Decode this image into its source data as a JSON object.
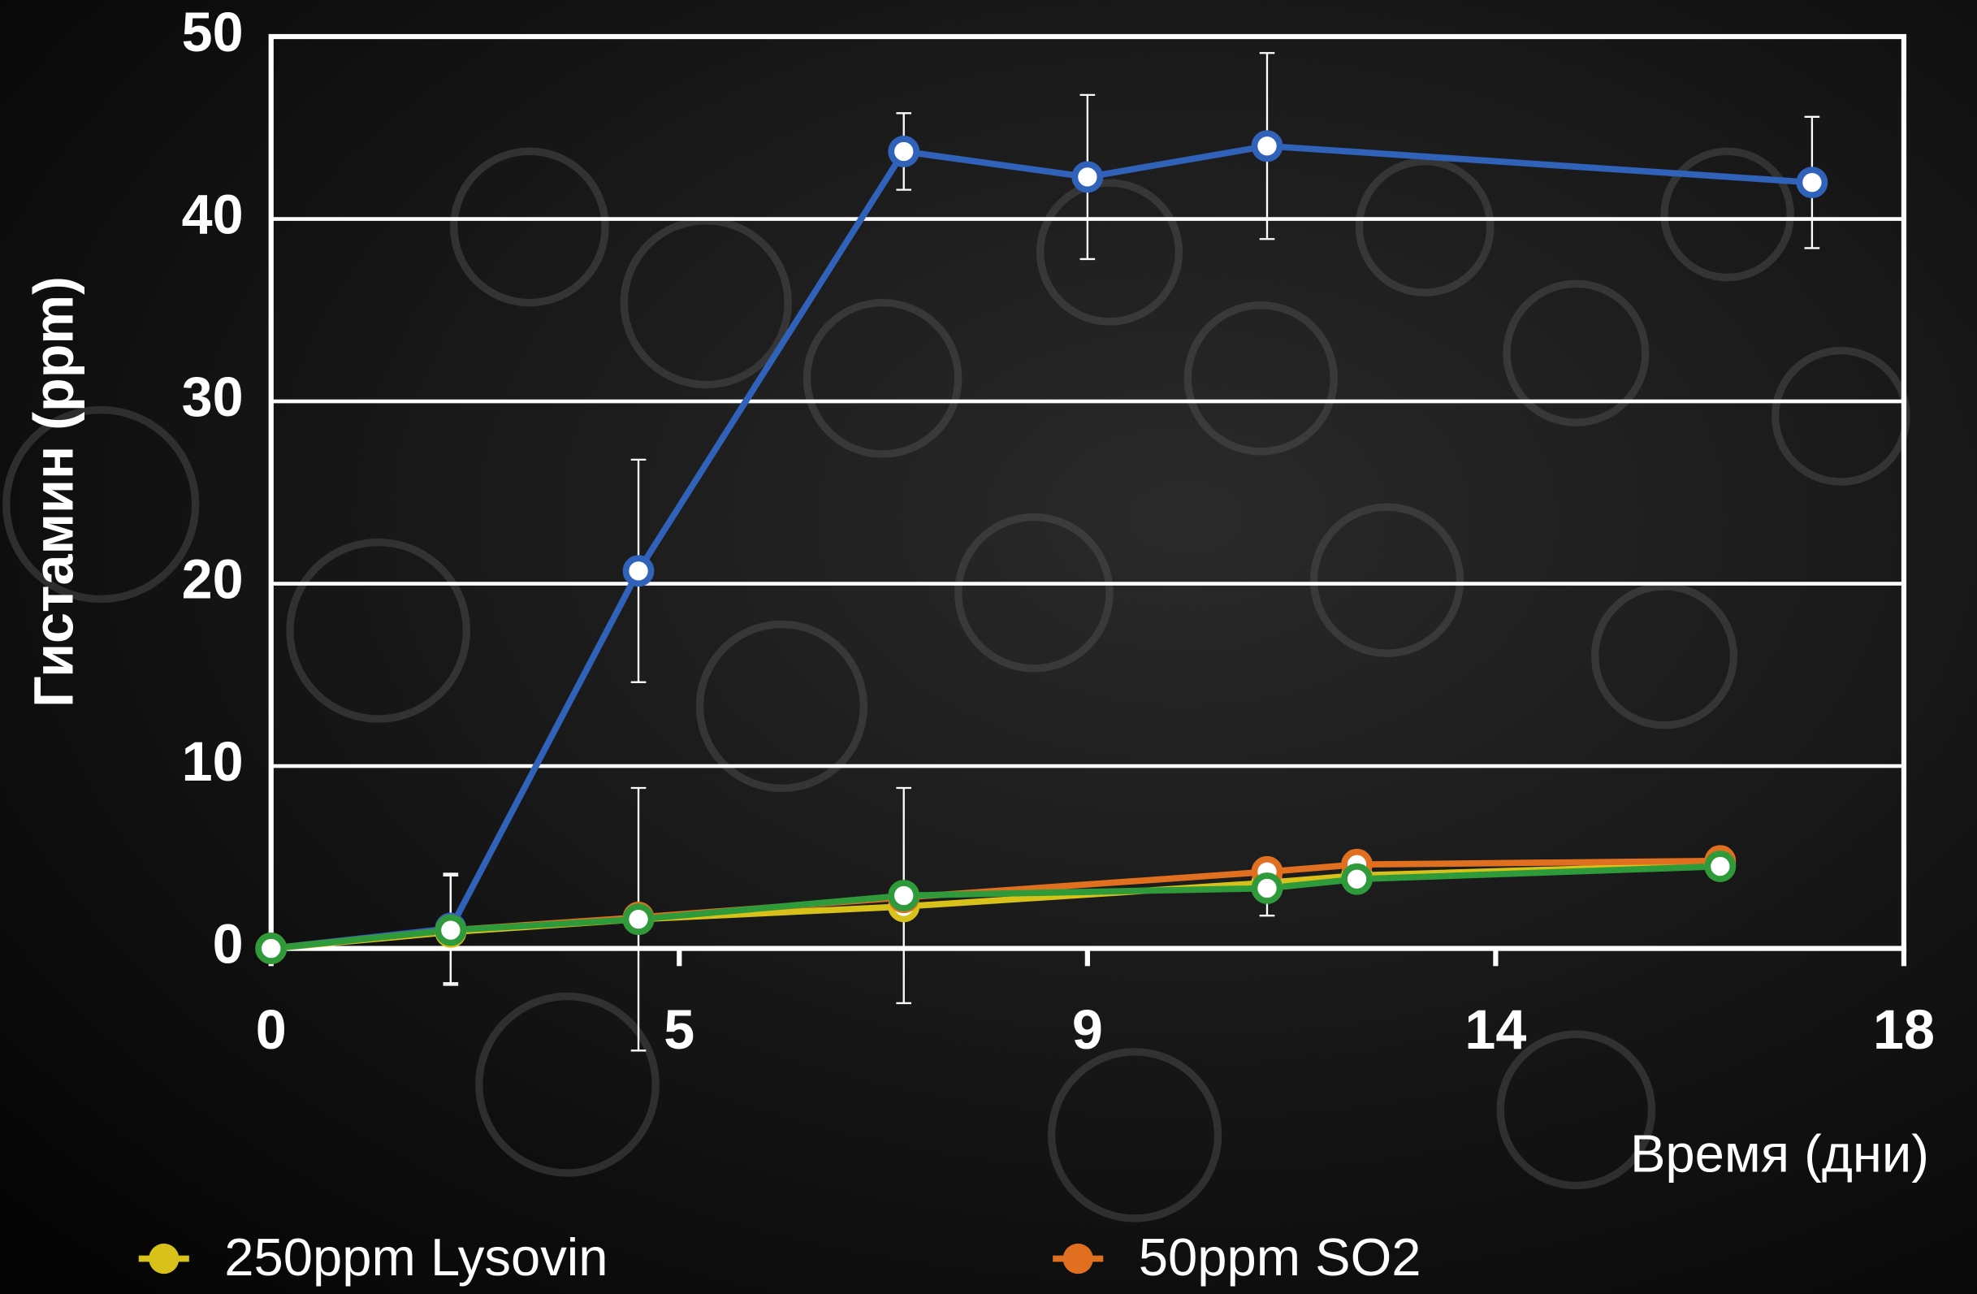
{
  "chart_data": {
    "type": "line",
    "x_label": "Время (дни)",
    "y_label": "Гистамин (ppm)",
    "x": [
      0,
      2.2,
      4.5,
      7.2,
      9,
      11.2,
      12.3,
      16.2,
      17.1
    ],
    "series": [
      {
        "color": "#2f62b8",
        "x": [
          0,
          2.2,
          4.5,
          7.2,
          9,
          11.2,
          17.1
        ],
        "values": [
          0,
          1.1,
          20.7,
          43.7,
          42.3,
          44.0,
          42.0
        ],
        "errors": [
          null,
          3.0,
          6.1,
          2.1,
          4.5,
          5.1,
          3.6
        ]
      },
      {
        "name": "250ppm Lysovin",
        "color": "#d8c21a",
        "x": [
          0,
          2.2,
          4.5,
          7.2,
          11.2,
          12.3,
          16.2
        ],
        "values": [
          0,
          0.9,
          1.6,
          2.3,
          3.6,
          4.0,
          4.6
        ]
      },
      {
        "name": "50ppm SO2",
        "color": "#e07020",
        "x": [
          0,
          2.2,
          4.5,
          7.2,
          11.2,
          12.3,
          16.2
        ],
        "values": [
          0,
          1.0,
          1.7,
          2.8,
          4.2,
          4.6,
          4.8
        ]
      },
      {
        "color": "#2e9a3a",
        "x": [
          0,
          2.2,
          4.5,
          7.2,
          11.2,
          12.3,
          16.2
        ],
        "values": [
          0,
          1.0,
          1.6,
          2.9,
          3.3,
          3.8,
          4.5
        ],
        "errors": [
          null,
          3.0,
          7.2,
          5.9,
          1.5,
          null,
          null
        ]
      }
    ],
    "xlim": [
      0,
      18
    ],
    "xticks": [
      0,
      5,
      9,
      14,
      18
    ],
    "ylim": [
      0,
      50
    ],
    "yticks": [
      0,
      10,
      20,
      30,
      40,
      50
    ],
    "grid": true
  }
}
